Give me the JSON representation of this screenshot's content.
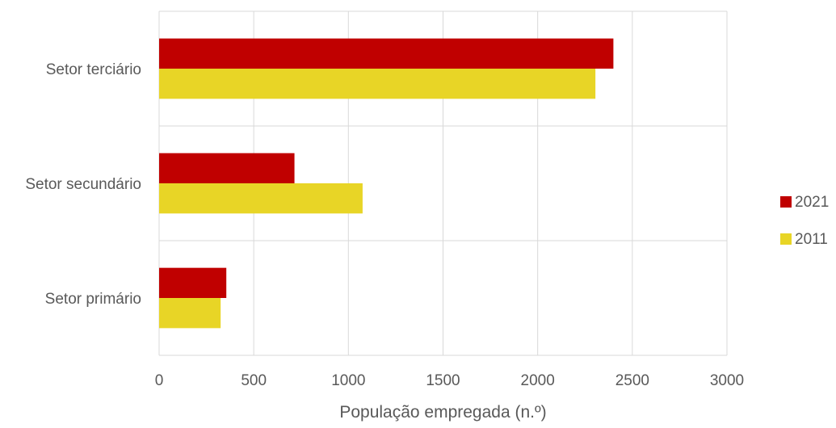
{
  "chart_data": {
    "type": "bar",
    "orientation": "horizontal",
    "categories": [
      "Setor terciário",
      "Setor secundário",
      "Setor primário"
    ],
    "series": [
      {
        "name": "2021",
        "color": "#C00000",
        "values": [
          2400,
          715,
          355
        ]
      },
      {
        "name": "2011",
        "color": "#E8D526",
        "values": [
          2305,
          1075,
          325
        ]
      }
    ],
    "title": "",
    "xlabel": "População empregada (n.º)",
    "ylabel": "",
    "xlim": [
      0,
      3000
    ],
    "xticks": [
      "0",
      "500",
      "1000",
      "1500",
      "2000",
      "2500",
      "3000"
    ],
    "grid": true,
    "legend_position": "right"
  }
}
